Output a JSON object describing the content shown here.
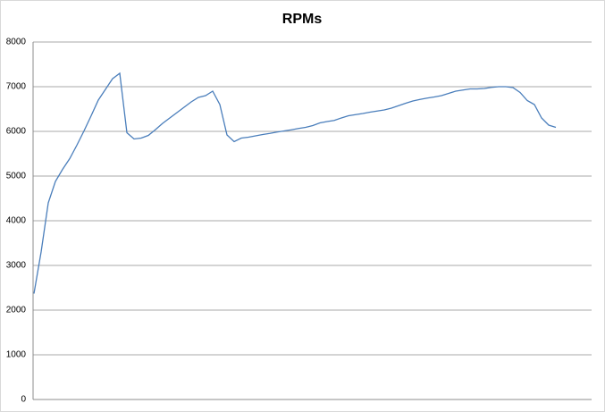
{
  "chart_data": {
    "type": "line",
    "title": "RPMs",
    "series": [
      {
        "name": "RPMs",
        "color": "#4a7ebb",
        "values": [
          2370,
          3300,
          4400,
          4880,
          5150,
          5390,
          5690,
          6010,
          6350,
          6700,
          6940,
          7180,
          7300,
          5970,
          5830,
          5850,
          5910,
          6040,
          6180,
          6300,
          6420,
          6540,
          6660,
          6760,
          6800,
          6900,
          6600,
          5920,
          5770,
          5850,
          5870,
          5900,
          5930,
          5955,
          5985,
          6010,
          6035,
          6065,
          6090,
          6130,
          6190,
          6220,
          6245,
          6300,
          6350,
          6375,
          6400,
          6430,
          6455,
          6480,
          6520,
          6575,
          6630,
          6680,
          6715,
          6745,
          6770,
          6800,
          6850,
          6900,
          6925,
          6950,
          6950,
          6960,
          6985,
          7000,
          7000,
          6980,
          6870,
          6690,
          6600,
          6300,
          6140,
          6090
        ]
      }
    ],
    "ylim": [
      0,
      8000
    ],
    "yticks": [
      0,
      1000,
      2000,
      3000,
      4000,
      5000,
      6000,
      7000,
      8000
    ],
    "grid": true
  }
}
